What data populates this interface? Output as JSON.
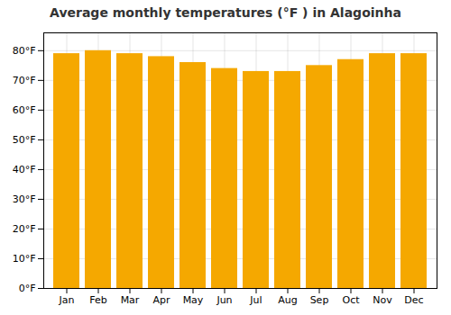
{
  "chart_data": {
    "type": "bar",
    "title": "Average monthly temperatures (°F ) in Alagoinha",
    "categories": [
      "Jan",
      "Feb",
      "Mar",
      "Apr",
      "May",
      "Jun",
      "Jul",
      "Aug",
      "Sep",
      "Oct",
      "Nov",
      "Dec"
    ],
    "values": [
      79.0,
      80.0,
      79.0,
      78.0,
      76.0,
      74.0,
      73.0,
      73.0,
      75.0,
      77.0,
      79.0,
      79.0
    ],
    "color": "#F5A800",
    "ylim": [
      0,
      86
    ],
    "yticks": [
      {
        "value": 0,
        "label": "0°F"
      },
      {
        "value": 10,
        "label": "10°F"
      },
      {
        "value": 20,
        "label": "20°F"
      },
      {
        "value": 30,
        "label": "30°F"
      },
      {
        "value": 40,
        "label": "40°F"
      },
      {
        "value": 50,
        "label": "50°F"
      },
      {
        "value": 60,
        "label": "60°F"
      },
      {
        "value": 70,
        "label": "70°F"
      },
      {
        "value": 80,
        "label": "80°F"
      }
    ],
    "grid": true
  }
}
